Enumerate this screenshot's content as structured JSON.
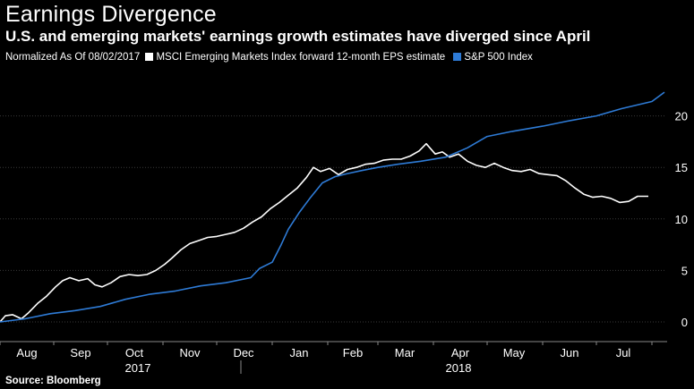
{
  "header": {
    "title": "Earnings Divergence",
    "subtitle": "U.S. and emerging markets' earnings growth estimates have diverged since April"
  },
  "legend": {
    "prefix": "Normalized As Of 08/02/2017"
  },
  "footer": {
    "source": "Source: Bloomberg"
  },
  "colors": {
    "background": "#000000",
    "msci": "#ffffff",
    "sp500": "#2e7bd6",
    "grid": "#3a3a3a"
  },
  "chart_data": {
    "type": "line",
    "title": "Earnings Divergence",
    "subtitle": "U.S. and emerging markets' earnings growth estimates have diverged since April",
    "note": "Normalized As Of 08/02/2017",
    "x_month_labels": [
      "Aug",
      "Sep",
      "Oct",
      "Nov",
      "Dec",
      "Jan",
      "Feb",
      "Mar",
      "Apr",
      "May",
      "Jun",
      "Jul"
    ],
    "x_year_labels": [
      "2017",
      "2018"
    ],
    "x_range": [
      "2017-08-02",
      "2018-08-08"
    ],
    "ylim": [
      -1.5,
      25
    ],
    "yticks": [
      0,
      5,
      10,
      15,
      20
    ],
    "y_axis_side": "right",
    "grid": true,
    "legend_position": "top-left",
    "series": [
      {
        "name": "MSCI Emerging Markets Index forward 12-month EPS estimate",
        "color": "#ffffff",
        "points": [
          [
            "2017-08-02",
            0.0
          ],
          [
            "2017-08-05",
            0.6
          ],
          [
            "2017-08-09",
            0.7
          ],
          [
            "2017-08-14",
            0.3
          ],
          [
            "2017-08-18",
            0.9
          ],
          [
            "2017-08-23",
            1.8
          ],
          [
            "2017-08-28",
            2.5
          ],
          [
            "2017-09-02",
            3.4
          ],
          [
            "2017-09-06",
            4.0
          ],
          [
            "2017-09-10",
            4.3
          ],
          [
            "2017-09-15",
            4.0
          ],
          [
            "2017-09-20",
            4.2
          ],
          [
            "2017-09-24",
            3.6
          ],
          [
            "2017-09-28",
            3.4
          ],
          [
            "2017-10-03",
            3.8
          ],
          [
            "2017-10-08",
            4.4
          ],
          [
            "2017-10-13",
            4.6
          ],
          [
            "2017-10-18",
            4.5
          ],
          [
            "2017-10-23",
            4.6
          ],
          [
            "2017-10-28",
            5.0
          ],
          [
            "2017-11-02",
            5.6
          ],
          [
            "2017-11-06",
            6.2
          ],
          [
            "2017-11-11",
            7.0
          ],
          [
            "2017-11-16",
            7.6
          ],
          [
            "2017-11-21",
            7.9
          ],
          [
            "2017-11-26",
            8.2
          ],
          [
            "2017-12-01",
            8.3
          ],
          [
            "2017-12-06",
            8.5
          ],
          [
            "2017-12-11",
            8.7
          ],
          [
            "2017-12-16",
            9.1
          ],
          [
            "2017-12-21",
            9.7
          ],
          [
            "2017-12-26",
            10.2
          ],
          [
            "2017-12-31",
            11.0
          ],
          [
            "2018-01-05",
            11.6
          ],
          [
            "2018-01-10",
            12.3
          ],
          [
            "2018-01-15",
            13.0
          ],
          [
            "2018-01-20",
            14.0
          ],
          [
            "2018-01-24",
            15.0
          ],
          [
            "2018-01-28",
            14.6
          ],
          [
            "2018-02-02",
            14.9
          ],
          [
            "2018-02-07",
            14.3
          ],
          [
            "2018-02-12",
            14.8
          ],
          [
            "2018-02-17",
            15.0
          ],
          [
            "2018-02-22",
            15.3
          ],
          [
            "2018-02-27",
            15.4
          ],
          [
            "2018-03-04",
            15.7
          ],
          [
            "2018-03-09",
            15.8
          ],
          [
            "2018-03-14",
            15.8
          ],
          [
            "2018-03-19",
            16.1
          ],
          [
            "2018-03-24",
            16.6
          ],
          [
            "2018-03-28",
            17.3
          ],
          [
            "2018-04-02",
            16.3
          ],
          [
            "2018-04-06",
            16.5
          ],
          [
            "2018-04-10",
            16.0
          ],
          [
            "2018-04-15",
            16.3
          ],
          [
            "2018-04-20",
            15.6
          ],
          [
            "2018-04-25",
            15.2
          ],
          [
            "2018-04-30",
            15.0
          ],
          [
            "2018-05-05",
            15.4
          ],
          [
            "2018-05-10",
            15.0
          ],
          [
            "2018-05-15",
            14.7
          ],
          [
            "2018-05-20",
            14.6
          ],
          [
            "2018-05-25",
            14.8
          ],
          [
            "2018-05-30",
            14.4
          ],
          [
            "2018-06-04",
            14.3
          ],
          [
            "2018-06-09",
            14.2
          ],
          [
            "2018-06-14",
            13.7
          ],
          [
            "2018-06-19",
            13.0
          ],
          [
            "2018-06-24",
            12.4
          ],
          [
            "2018-06-29",
            12.1
          ],
          [
            "2018-07-04",
            12.2
          ],
          [
            "2018-07-09",
            12.0
          ],
          [
            "2018-07-14",
            11.6
          ],
          [
            "2018-07-19",
            11.7
          ],
          [
            "2018-07-24",
            12.2
          ],
          [
            "2018-07-30",
            12.2
          ]
        ]
      },
      {
        "name": "S&P 500 Index",
        "color": "#2e7bd6",
        "points": [
          [
            "2017-08-02",
            0.0
          ],
          [
            "2017-08-16",
            0.3
          ],
          [
            "2017-08-30",
            0.8
          ],
          [
            "2017-09-13",
            1.1
          ],
          [
            "2017-09-27",
            1.5
          ],
          [
            "2017-10-11",
            2.2
          ],
          [
            "2017-10-25",
            2.7
          ],
          [
            "2017-11-08",
            3.0
          ],
          [
            "2017-11-22",
            3.5
          ],
          [
            "2017-12-06",
            3.8
          ],
          [
            "2017-12-20",
            4.3
          ],
          [
            "2017-12-25",
            5.2
          ],
          [
            "2018-01-01",
            5.8
          ],
          [
            "2018-01-06",
            7.5
          ],
          [
            "2018-01-10",
            9.0
          ],
          [
            "2018-01-16",
            10.6
          ],
          [
            "2018-01-22",
            12.0
          ],
          [
            "2018-01-29",
            13.5
          ],
          [
            "2018-02-05",
            14.1
          ],
          [
            "2018-02-12",
            14.4
          ],
          [
            "2018-02-20",
            14.7
          ],
          [
            "2018-03-01",
            15.0
          ],
          [
            "2018-03-12",
            15.3
          ],
          [
            "2018-03-25",
            15.6
          ],
          [
            "2018-04-08",
            16.0
          ],
          [
            "2018-04-20",
            16.9
          ],
          [
            "2018-05-01",
            18.0
          ],
          [
            "2018-05-15",
            18.5
          ],
          [
            "2018-06-01",
            19.0
          ],
          [
            "2018-06-15",
            19.5
          ],
          [
            "2018-07-01",
            20.0
          ],
          [
            "2018-07-15",
            20.7
          ],
          [
            "2018-08-01",
            21.4
          ],
          [
            "2018-08-08",
            22.3
          ]
        ]
      }
    ]
  }
}
